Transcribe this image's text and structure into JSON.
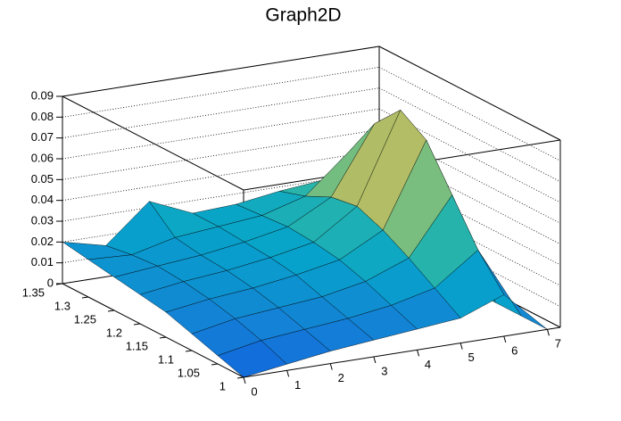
{
  "chart_data": {
    "type": "surface",
    "title": "Graph2D",
    "x": [
      0,
      1,
      2,
      3,
      4,
      5,
      6,
      7
    ],
    "y": [
      1,
      1.05,
      1.1,
      1.15,
      1.2,
      1.25,
      1.3,
      1.35
    ],
    "z": [
      [
        0.0,
        0.003,
        0.006,
        0.008,
        0.01,
        0.012,
        0.02,
        0.0
      ],
      [
        0.004,
        0.008,
        0.01,
        0.012,
        0.015,
        0.02,
        0.035,
        0.0
      ],
      [
        0.008,
        0.012,
        0.014,
        0.016,
        0.02,
        0.028,
        0.055,
        0.0
      ],
      [
        0.012,
        0.015,
        0.017,
        0.02,
        0.024,
        0.035,
        0.075,
        0.0
      ],
      [
        0.014,
        0.017,
        0.019,
        0.022,
        0.026,
        0.04,
        0.083,
        0.0
      ],
      [
        0.016,
        0.018,
        0.02,
        0.023,
        0.027,
        0.038,
        0.07,
        0.0
      ],
      [
        0.018,
        0.017,
        0.022,
        0.024,
        0.026,
        0.032,
        0.05,
        0.0
      ],
      [
        0.02,
        0.015,
        0.033,
        0.024,
        0.025,
        0.028,
        0.03,
        0.0
      ]
    ],
    "xlim": [
      0,
      7.3
    ],
    "ylim": [
      1,
      1.35
    ],
    "zlim": [
      0,
      0.09
    ],
    "xticks": [
      0,
      1,
      2,
      3,
      4,
      5,
      6,
      7
    ],
    "yticks": [
      1,
      1.05,
      1.1,
      1.15,
      1.2,
      1.25,
      1.3,
      1.35
    ],
    "zticks": [
      0,
      0.01,
      0.02,
      0.03,
      0.04,
      0.05,
      0.06,
      0.07,
      0.08,
      0.09
    ],
    "grid": true
  }
}
